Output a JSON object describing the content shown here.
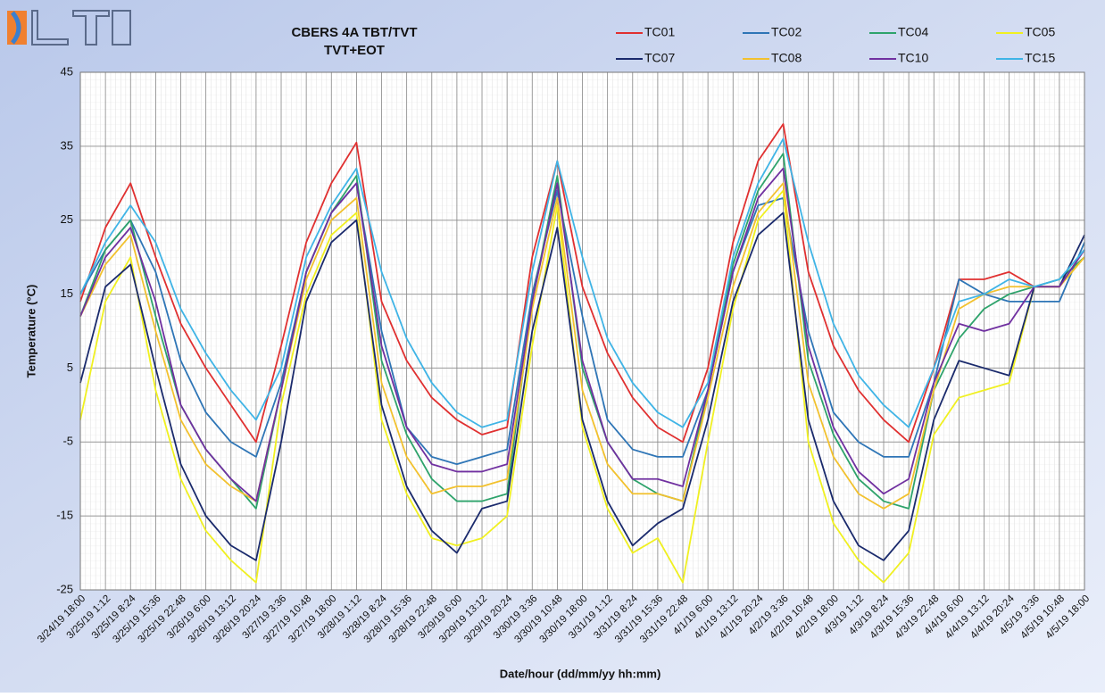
{
  "chart_data": {
    "type": "line",
    "title": "CBERS 4A TBT/TVT",
    "subtitle": "TVT+EOT",
    "x_label": "Date/hour (dd/mm/yy hh:mm)",
    "y_label": "Temperature (°C)",
    "categories": [
      "3/24/19 18:00",
      "3/25/19 1:12",
      "3/25/19 8:24",
      "3/25/19 15:36",
      "3/25/19 22:48",
      "3/26/19 6:00",
      "3/26/19 13:12",
      "3/26/19 20:24",
      "3/27/19 3:36",
      "3/27/19 10:48",
      "3/27/19 18:00",
      "3/28/19 1:12",
      "3/28/19 8:24",
      "3/28/19 15:36",
      "3/28/19 22:48",
      "3/29/19 6:00",
      "3/29/19 13:12",
      "3/29/19 20:24",
      "3/30/19 3:36",
      "3/30/19 10:48",
      "3/30/19 18:00",
      "3/31/19 1:12",
      "3/31/19 8:24",
      "3/31/19 15:36",
      "3/31/19 22:48",
      "4/1/19 6:00",
      "4/1/19 13:12",
      "4/1/19 20:24",
      "4/2/19 3:36",
      "4/2/19 10:48",
      "4/2/19 18:00",
      "4/3/19 1:12",
      "4/3/19 8:24",
      "4/3/19 15:36",
      "4/3/19 22:48",
      "4/4/19 6:00",
      "4/4/19 13:12",
      "4/4/19 20:24",
      "4/5/19 3:36",
      "4/5/19 10:48",
      "4/5/19 18:00"
    ],
    "series": [
      {
        "name": "TC01",
        "color": "#e03030",
        "values": [
          14,
          24,
          30,
          20,
          11,
          5,
          0,
          -5,
          8,
          22,
          30,
          35.5,
          14,
          6,
          1,
          -2,
          -4,
          -3,
          20,
          33,
          16,
          7,
          1,
          -3,
          -5,
          5,
          22,
          33,
          38,
          18,
          8,
          2,
          -2,
          -5,
          5,
          17,
          17,
          18,
          16,
          16,
          21
        ]
      },
      {
        "name": "TC02",
        "color": "#2e75b6",
        "values": [
          15,
          21,
          25,
          18,
          6,
          -1,
          -5,
          -7,
          3,
          18,
          26,
          30,
          10,
          -3,
          -7,
          -8,
          -7,
          -6,
          15,
          29,
          12,
          -2,
          -6,
          -7,
          -7,
          2,
          18,
          27,
          28,
          10,
          -1,
          -5,
          -7,
          -7,
          3,
          17,
          15,
          14,
          14,
          14,
          22
        ]
      },
      {
        "name": "TC04",
        "color": "#2ea36b",
        "values": [
          12,
          21,
          25,
          12,
          0,
          -6,
          -10,
          -14,
          2,
          18,
          26,
          31,
          6,
          -4,
          -10,
          -13,
          -13,
          -12,
          14,
          31,
          5,
          -5,
          -10,
          -12,
          -13,
          2,
          19,
          29,
          34,
          6,
          -4,
          -10,
          -13,
          -14,
          2,
          9,
          13,
          15,
          16,
          17,
          20
        ]
      },
      {
        "name": "TC05",
        "color": "#f0f020",
        "values": [
          -2,
          14,
          20,
          2,
          -10,
          -17,
          -21,
          -24,
          0,
          15,
          23,
          26,
          -2,
          -12,
          -18,
          -19,
          -18,
          -15,
          8,
          27,
          -3,
          -14,
          -20,
          -18,
          -24,
          -5,
          13,
          25,
          29,
          -5,
          -16,
          -21,
          -24,
          -20,
          -4,
          1,
          2,
          3,
          16,
          16,
          20
        ]
      },
      {
        "name": "TC07",
        "color": "#1a2a6c",
        "values": [
          3,
          16,
          19,
          5,
          -8,
          -15,
          -19,
          -21,
          -5,
          14,
          22,
          25,
          0,
          -11,
          -17,
          -20,
          -14,
          -13,
          10,
          24,
          -2,
          -13,
          -19,
          -16,
          -14,
          -2,
          14,
          23,
          26,
          -2,
          -13,
          -19,
          -21,
          -17,
          -2,
          6,
          5,
          4,
          16,
          16,
          23
        ]
      },
      {
        "name": "TC08",
        "color": "#f2c12e",
        "values": [
          12,
          19,
          23,
          10,
          -2,
          -8,
          -11,
          -13,
          2,
          17,
          25,
          28,
          3,
          -7,
          -12,
          -11,
          -11,
          -10,
          13,
          28,
          2,
          -8,
          -12,
          -12,
          -13,
          1,
          16,
          26,
          30,
          3,
          -7,
          -12,
          -14,
          -12,
          2,
          13,
          15,
          16,
          16,
          16,
          20
        ]
      },
      {
        "name": "TC10",
        "color": "#7030a0",
        "values": [
          12,
          20,
          24,
          14,
          0,
          -6,
          -10,
          -13,
          2,
          18,
          26,
          30,
          8,
          -3,
          -8,
          -9,
          -9,
          -8,
          14,
          30,
          6,
          -5,
          -10,
          -10,
          -11,
          2,
          18,
          28,
          32,
          8,
          -3,
          -9,
          -12,
          -10,
          3,
          11,
          10,
          11,
          16,
          16,
          21
        ]
      },
      {
        "name": "TC15",
        "color": "#3fb4e6",
        "values": [
          15,
          22,
          27,
          22,
          13,
          7,
          2,
          -2,
          5,
          20,
          27,
          32,
          18,
          9,
          3,
          -1,
          -3,
          -2,
          18,
          33,
          20,
          9,
          3,
          -1,
          -3,
          3,
          20,
          30,
          36,
          22,
          11,
          4,
          0,
          -3,
          5,
          14,
          15,
          17,
          16,
          17,
          21
        ]
      }
    ],
    "ylim": [
      -25,
      45
    ],
    "yticks": [
      -25,
      -15,
      -5,
      5,
      15,
      25,
      35,
      45
    ],
    "grid": true
  }
}
